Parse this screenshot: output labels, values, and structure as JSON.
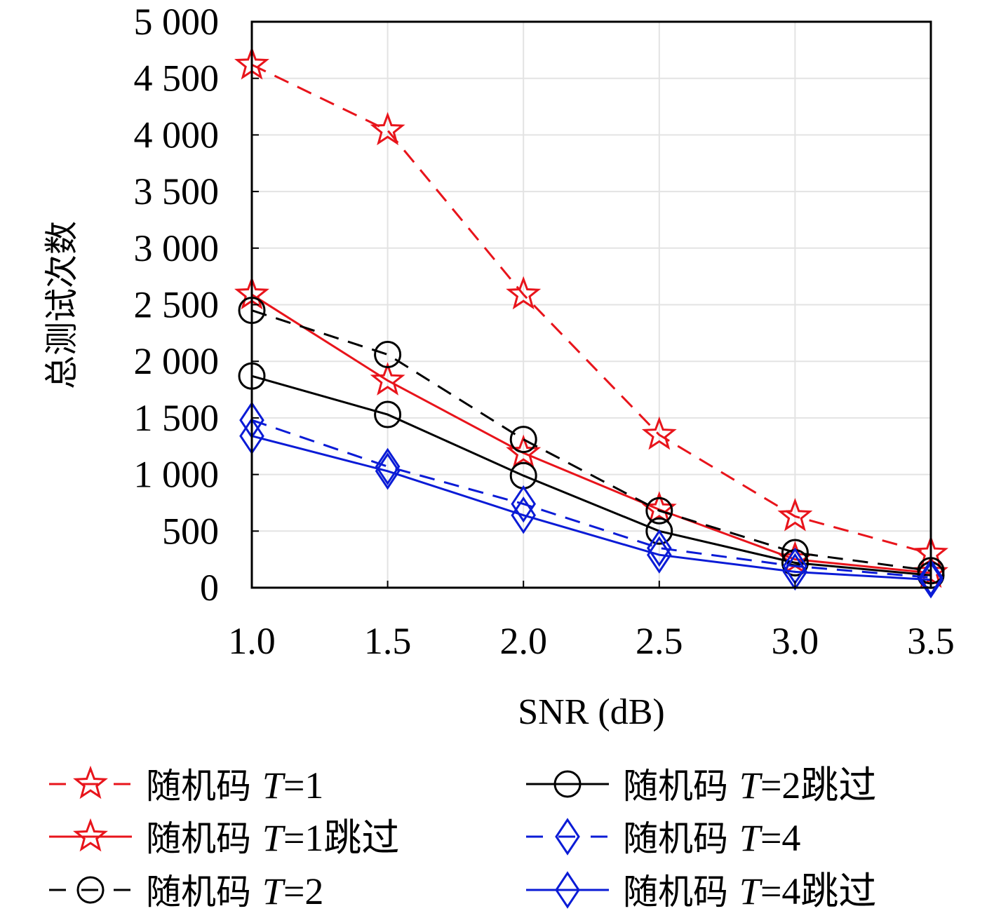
{
  "chart_data": {
    "type": "line",
    "xlabel": "SNR (dB)",
    "ylabel": "总测试次数",
    "x": [
      1.0,
      1.5,
      2.0,
      2.5,
      3.0,
      3.5
    ],
    "xticks": [
      "1.0",
      "1.5",
      "2.0",
      "2.5",
      "3.0",
      "3.5"
    ],
    "xlim": [
      1.0,
      3.5
    ],
    "ylim": [
      0,
      5000
    ],
    "yticks": [
      {
        "value": 0,
        "label": "0"
      },
      {
        "value": 500,
        "label": "500"
      },
      {
        "value": 1000,
        "label": "1 000"
      },
      {
        "value": 1500,
        "label": "1 500"
      },
      {
        "value": 2000,
        "label": "2 000"
      },
      {
        "value": 2500,
        "label": "2 500"
      },
      {
        "value": 3000,
        "label": "3 000"
      },
      {
        "value": 3500,
        "label": "3 500"
      },
      {
        "value": 4000,
        "label": "4 000"
      },
      {
        "value": 4500,
        "label": "4 500"
      },
      {
        "value": 5000,
        "label": "5 000"
      }
    ],
    "grid": true,
    "legend_position": "bottom",
    "series": [
      {
        "name_prefix": "随机码 ",
        "name_var": "T",
        "name_suffix": "=1",
        "color": "#e8141b",
        "dash": "dashed",
        "marker": "star",
        "values": [
          4620,
          4040,
          2590,
          1350,
          630,
          300
        ]
      },
      {
        "name_prefix": "随机码 ",
        "name_var": "T",
        "name_suffix": "=1跳过",
        "color": "#e8141b",
        "dash": "solid",
        "marker": "star",
        "values": [
          2590,
          1830,
          1190,
          690,
          250,
          130
        ]
      },
      {
        "name_prefix": "随机码 ",
        "name_var": "T",
        "name_suffix": "=2",
        "color": "#000000",
        "dash": "dashed",
        "marker": "circle",
        "values": [
          2450,
          2060,
          1310,
          680,
          310,
          150
        ]
      },
      {
        "name_prefix": "随机码 ",
        "name_var": "T",
        "name_suffix": "=2跳过",
        "color": "#000000",
        "dash": "solid",
        "marker": "circle",
        "values": [
          1870,
          1530,
          990,
          500,
          220,
          110
        ]
      },
      {
        "name_prefix": "随机码 ",
        "name_var": "T",
        "name_suffix": "=4",
        "color": "#0a1bd6",
        "dash": "dashed",
        "marker": "diamond",
        "values": [
          1480,
          1070,
          740,
          350,
          190,
          90
        ]
      },
      {
        "name_prefix": "随机码 ",
        "name_var": "T",
        "name_suffix": "=4跳过",
        "color": "#0a1bd6",
        "dash": "solid",
        "marker": "diamond",
        "values": [
          1340,
          1030,
          640,
          290,
          140,
          70
        ]
      }
    ]
  }
}
